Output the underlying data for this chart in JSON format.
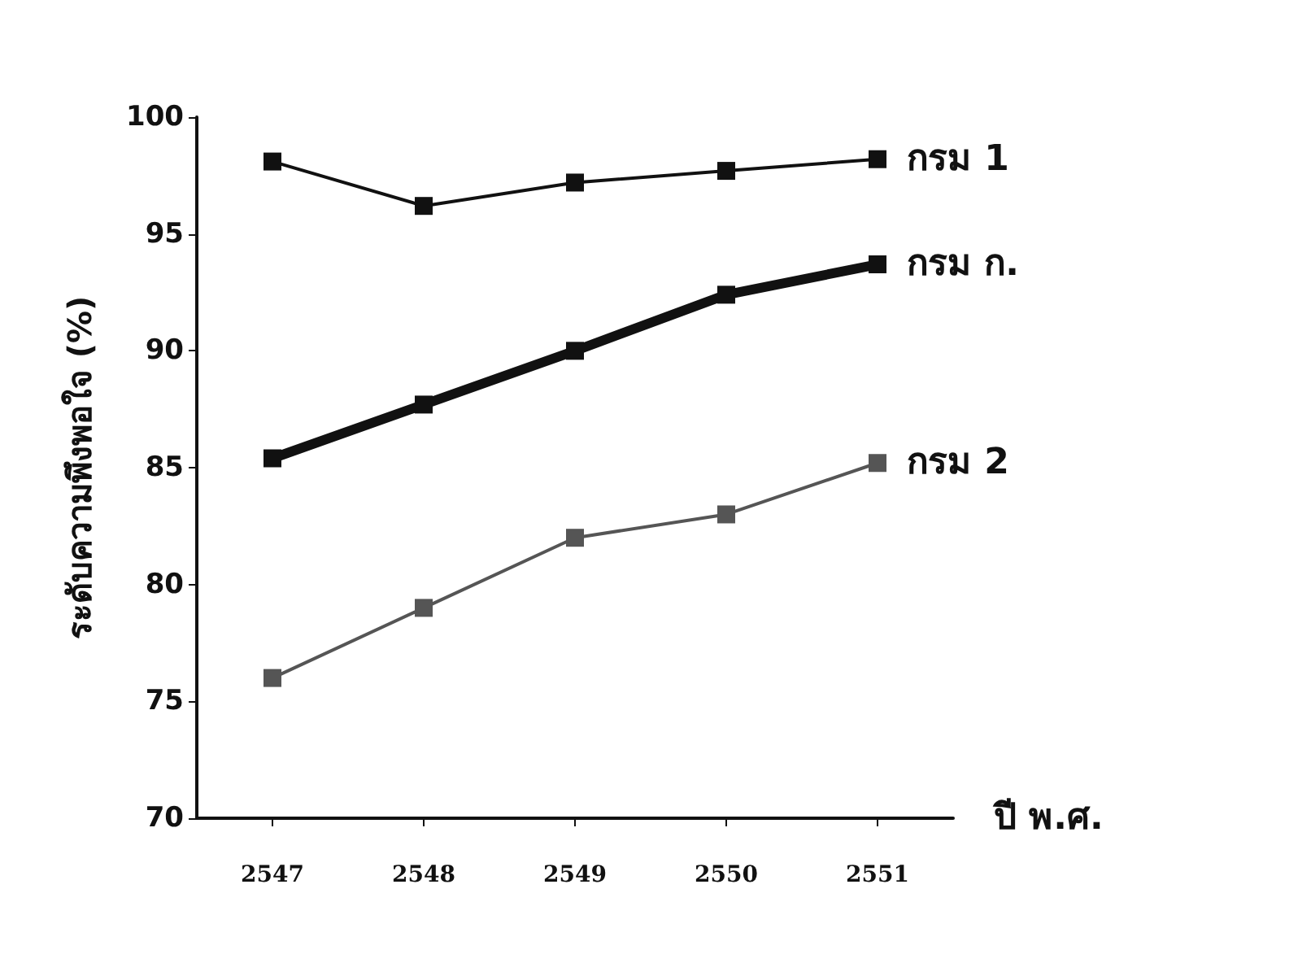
{
  "chart_data": {
    "type": "line",
    "xlabel": "ปี พ.ศ.",
    "ylabel": "ระดับความพึงพอใจ (%)",
    "categories": [
      "2547",
      "2548",
      "2549",
      "2550",
      "2551"
    ],
    "series": [
      {
        "name": "กรม 1",
        "color": "#111111",
        "values": [
          98.1,
          96.2,
          97.2,
          97.7,
          98.2
        ]
      },
      {
        "name": "กรม ก.",
        "color": "#111111",
        "values": [
          85.4,
          87.7,
          90,
          92.4,
          93.7
        ]
      },
      {
        "name": "กรม 2",
        "color": "#555555",
        "values": [
          76,
          79,
          82,
          83,
          85.2
        ]
      }
    ],
    "ylim": [
      70,
      100
    ],
    "yticks": [
      70,
      75,
      80,
      85,
      90,
      95,
      100
    ],
    "grid": false,
    "legend": false,
    "marker": "square",
    "line_style": "solid"
  }
}
